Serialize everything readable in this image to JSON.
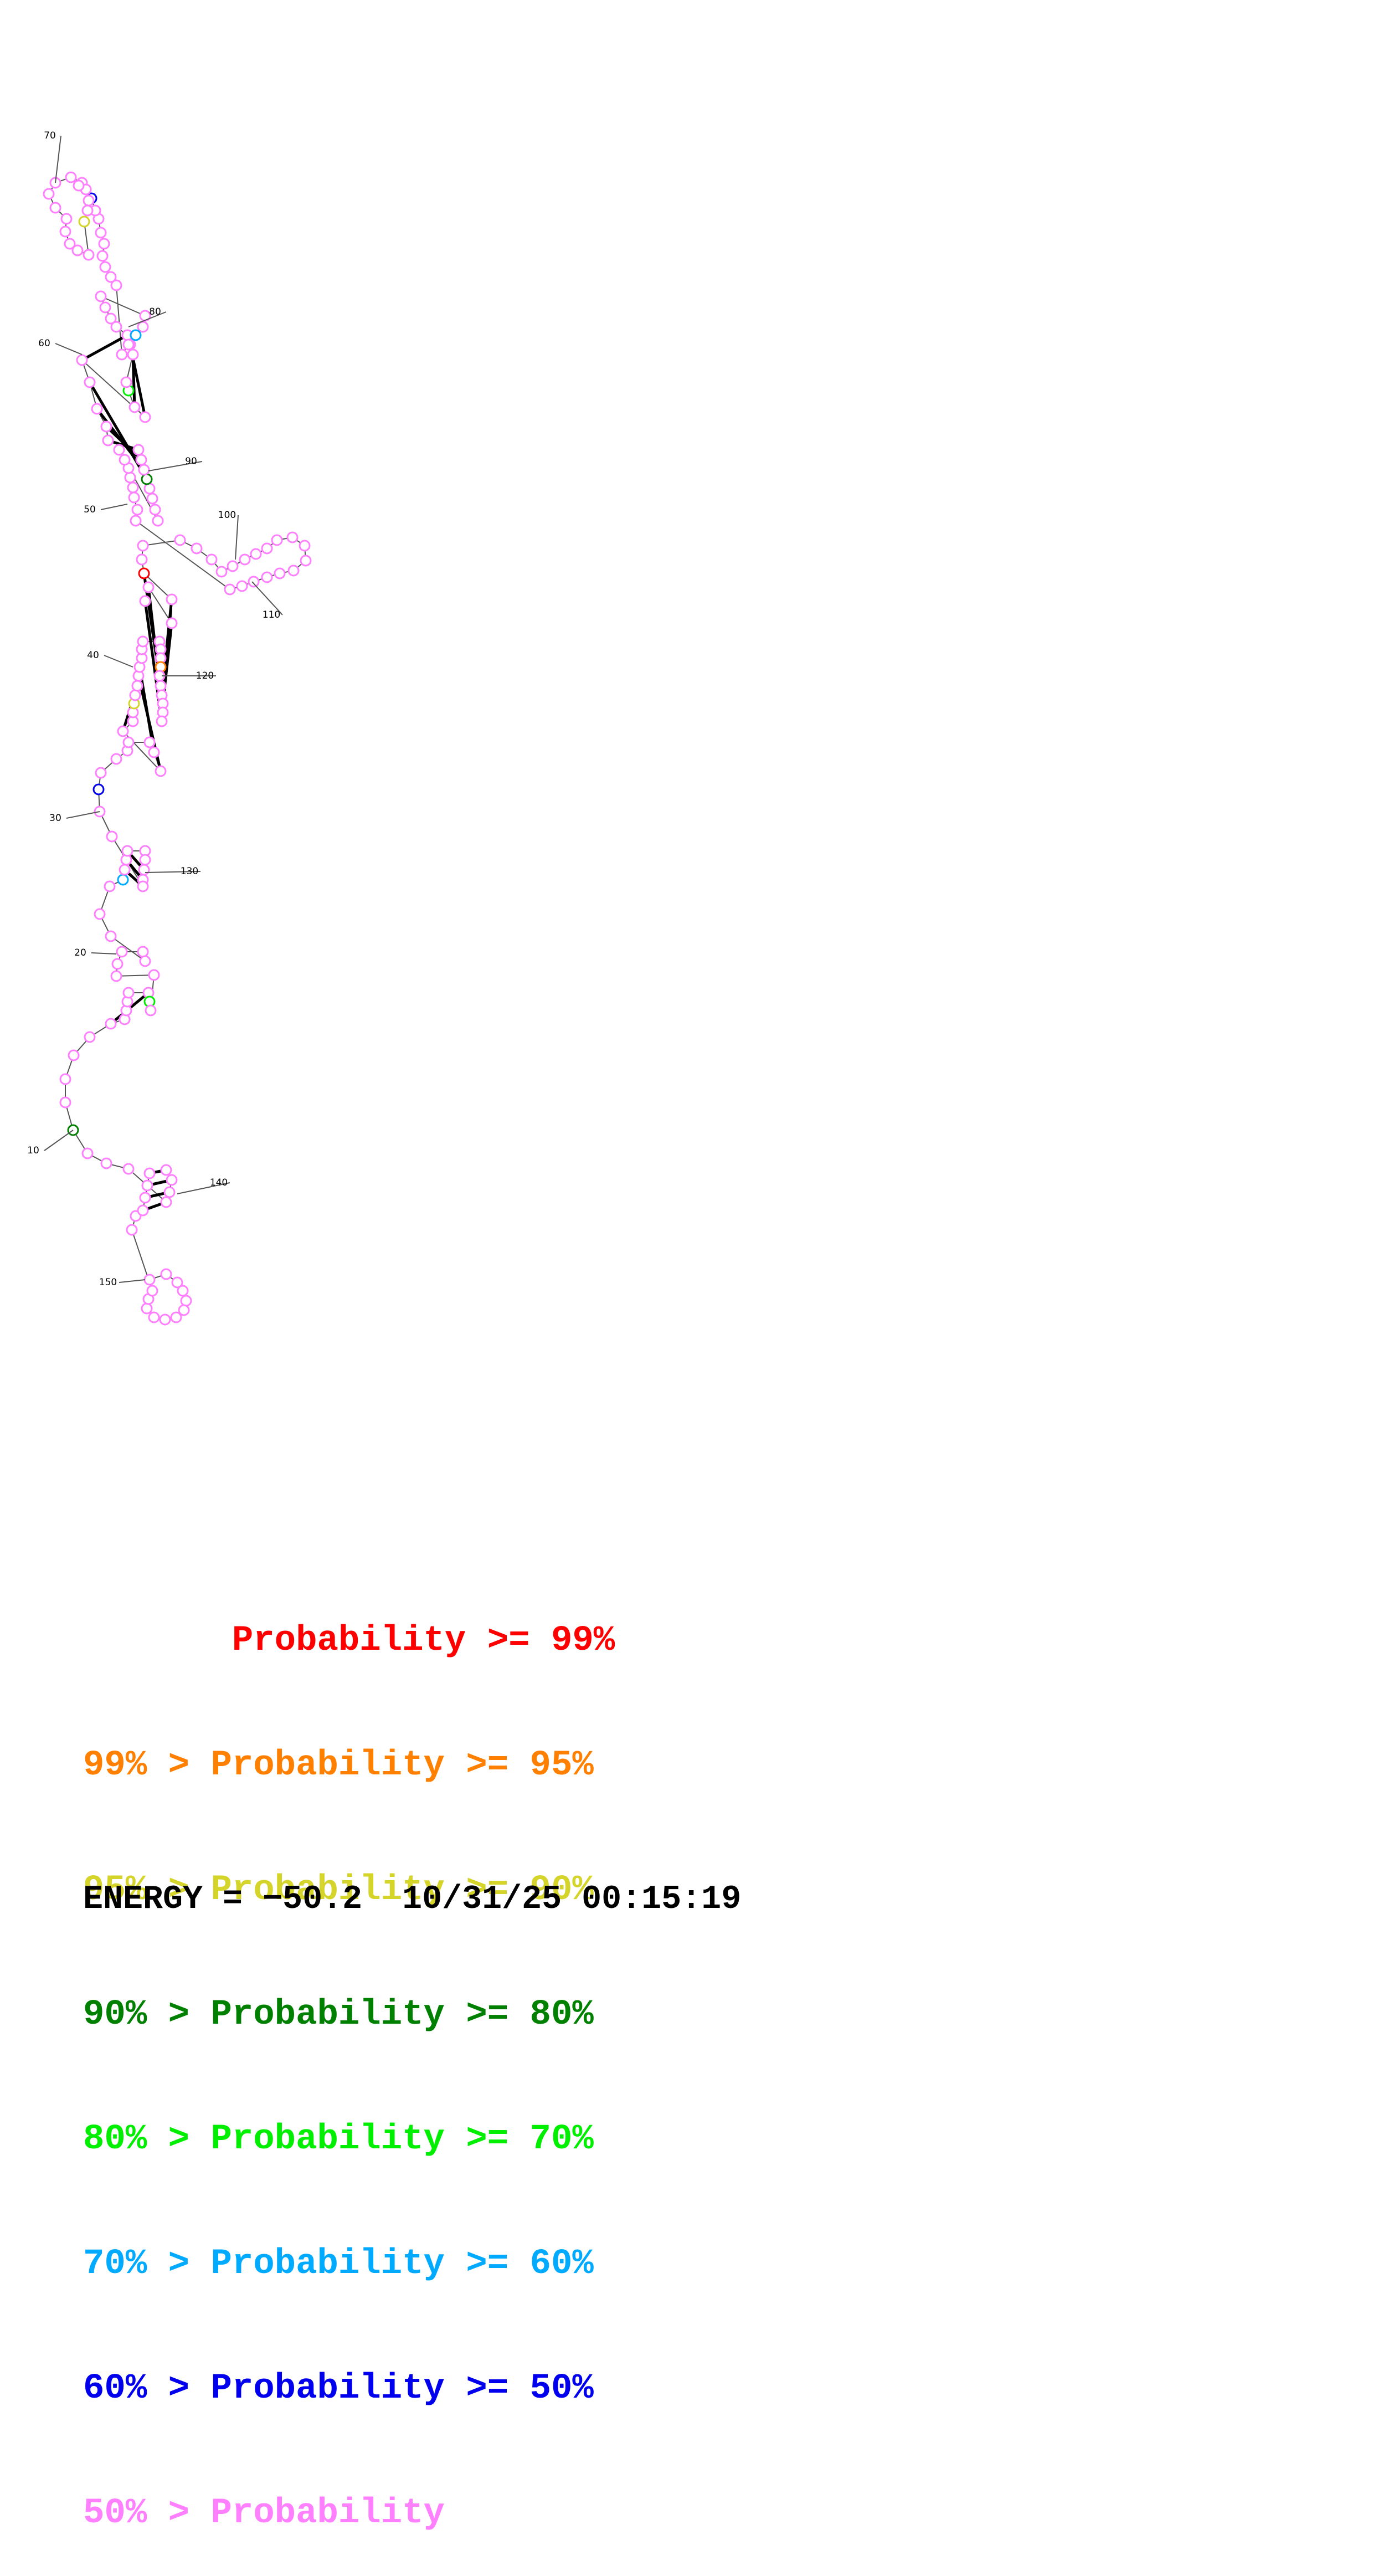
{
  "structure": {
    "position_labels": [
      "10",
      "20",
      "30",
      "40",
      "50",
      "60",
      "70",
      "80",
      "90",
      "100",
      "110",
      "120",
      "130",
      "140",
      "150"
    ]
  },
  "legend": {
    "lines": [
      {
        "text": "       Probability >= 99%",
        "color": "#ff0000"
      },
      {
        "text": "99% > Probability >= 95%",
        "color": "#ff8000"
      },
      {
        "text": "95% > Probability >= 90%",
        "color": "#d4d42a"
      },
      {
        "text": "90% > Probability >= 80%",
        "color": "#008000"
      },
      {
        "text": "80% > Probability >= 70%",
        "color": "#00ee00"
      },
      {
        "text": "70% > Probability >= 60%",
        "color": "#00aaff"
      },
      {
        "text": "60% > Probability >= 50%",
        "color": "#0000ee"
      },
      {
        "text": "50% > Probability",
        "color": "#ff80ff"
      }
    ]
  },
  "energy_line": "ENERGY = −50.2  10/31/25 00:15:19",
  "colors": {
    "p99": "#ff0000",
    "p95": "#ff8000",
    "p90": "#d4d42a",
    "p80": "#008000",
    "p70": "#00ee00",
    "p60": "#00aaff",
    "p50": "#0000ee",
    "plow": "#ff80ff",
    "line": "#555555",
    "text": "#000000"
  }
}
